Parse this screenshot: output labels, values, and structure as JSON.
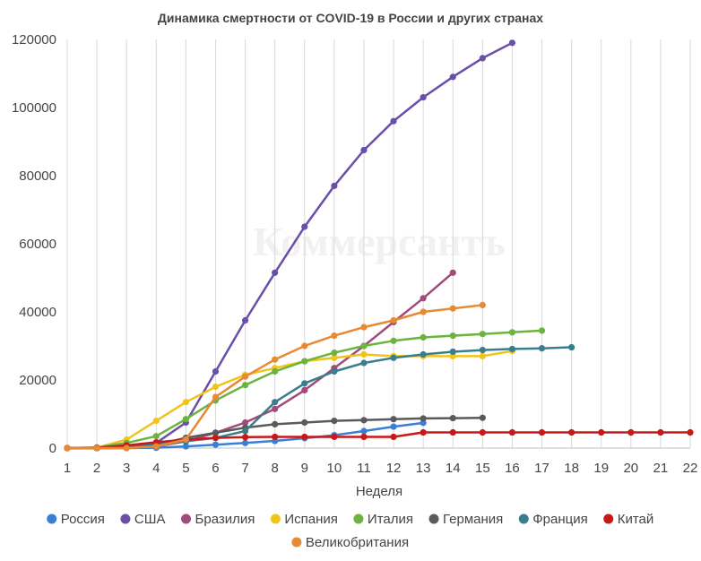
{
  "chart_data": {
    "type": "line",
    "title": "Динамика смертности от COVID-19 в России и других странах",
    "xlabel": "Неделя",
    "ylabel": "",
    "watermark": "Коммерсантъ",
    "x_ticks": [
      1,
      2,
      3,
      4,
      5,
      6,
      7,
      8,
      9,
      10,
      11,
      12,
      13,
      14,
      15,
      16,
      17,
      18,
      19,
      20,
      21,
      22
    ],
    "y_ticks": [
      0,
      20000,
      40000,
      60000,
      80000,
      100000,
      120000
    ],
    "xlim": [
      1,
      22
    ],
    "ylim": [
      0,
      120000
    ],
    "grid": {
      "vertical": true,
      "horizontal": false
    },
    "legend_position": "bottom",
    "series": [
      {
        "name": "Россия",
        "color": "#3a7fd5",
        "values": [
          0,
          0,
          0,
          100,
          500,
          1000,
          1500,
          2100,
          2900,
          3800,
          5000,
          6300,
          7400
        ]
      },
      {
        "name": "США",
        "color": "#6a4fa8",
        "values": [
          0,
          0,
          200,
          1500,
          7500,
          22500,
          37500,
          51500,
          65000,
          77000,
          87500,
          96000,
          103000,
          109000,
          114500,
          119000
        ]
      },
      {
        "name": "Бразилия",
        "color": "#a24a7a",
        "values": [
          0,
          0,
          0,
          500,
          2000,
          4500,
          7500,
          11500,
          17000,
          23500,
          30000,
          37000,
          44000,
          51500
        ]
      },
      {
        "name": "Испания",
        "color": "#f0c419",
        "values": [
          0,
          100,
          2500,
          8000,
          13500,
          18000,
          21500,
          23500,
          25500,
          26500,
          27500,
          27000,
          27000,
          27000,
          27000,
          28500
        ]
      },
      {
        "name": "Италия",
        "color": "#6cb33f",
        "values": [
          0,
          200,
          1500,
          3500,
          8500,
          14000,
          18500,
          22500,
          25500,
          28000,
          30000,
          31500,
          32500,
          33000,
          33500,
          34000,
          34500
        ]
      },
      {
        "name": "Германия",
        "color": "#5a5a5a",
        "values": [
          0,
          0,
          100,
          1000,
          3000,
          4500,
          6000,
          7000,
          7500,
          8000,
          8200,
          8500,
          8700,
          8800,
          8900
        ]
      },
      {
        "name": "Франция",
        "color": "#3a7d8c",
        "values": [
          0,
          0,
          100,
          1000,
          2000,
          3000,
          5000,
          13500,
          19000,
          22500,
          25000,
          26500,
          27500,
          28300,
          28800,
          29100,
          29300,
          29600
        ]
      },
      {
        "name": "Китай",
        "color": "#c91818",
        "values": [
          0,
          100,
          800,
          1700,
          2500,
          3000,
          3200,
          3300,
          3300,
          3300,
          3300,
          3300,
          4600,
          4600,
          4600,
          4600,
          4600,
          4600,
          4600,
          4600,
          4600,
          4600
        ]
      },
      {
        "name": "Великобритания",
        "color": "#e88a33",
        "values": [
          0,
          0,
          0,
          500,
          2500,
          15000,
          21000,
          26000,
          30000,
          33000,
          35500,
          37500,
          40000,
          41000,
          42000
        ]
      }
    ]
  }
}
